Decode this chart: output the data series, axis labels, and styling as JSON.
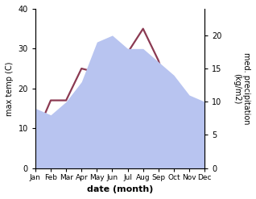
{
  "months": [
    "Jan",
    "Feb",
    "Mar",
    "Apr",
    "May",
    "Jun",
    "Jul",
    "Aug",
    "Sep",
    "Oct",
    "Nov",
    "Dec"
  ],
  "temp": [
    8,
    17,
    17,
    25,
    24,
    32,
    29,
    35,
    27,
    15,
    9,
    8
  ],
  "precip": [
    9,
    8,
    10,
    13,
    19,
    20,
    18,
    18,
    16,
    14,
    11,
    10
  ],
  "temp_color": "#8B3A52",
  "precip_color": "#b8c4f0",
  "ylabel_left": "max temp (C)",
  "ylabel_right": "med. precipitation\n(kg/m2)",
  "xlabel": "date (month)",
  "ylim_left": [
    0,
    40
  ],
  "ylim_right": [
    0,
    24
  ],
  "yticks_left": [
    0,
    10,
    20,
    30,
    40
  ],
  "yticks_right": [
    0,
    5,
    10,
    15,
    20
  ],
  "temp_linewidth": 1.6,
  "xlabel_fontsize": 8,
  "ylabel_fontsize": 7,
  "tick_fontsize": 7,
  "month_fontsize": 6.5
}
